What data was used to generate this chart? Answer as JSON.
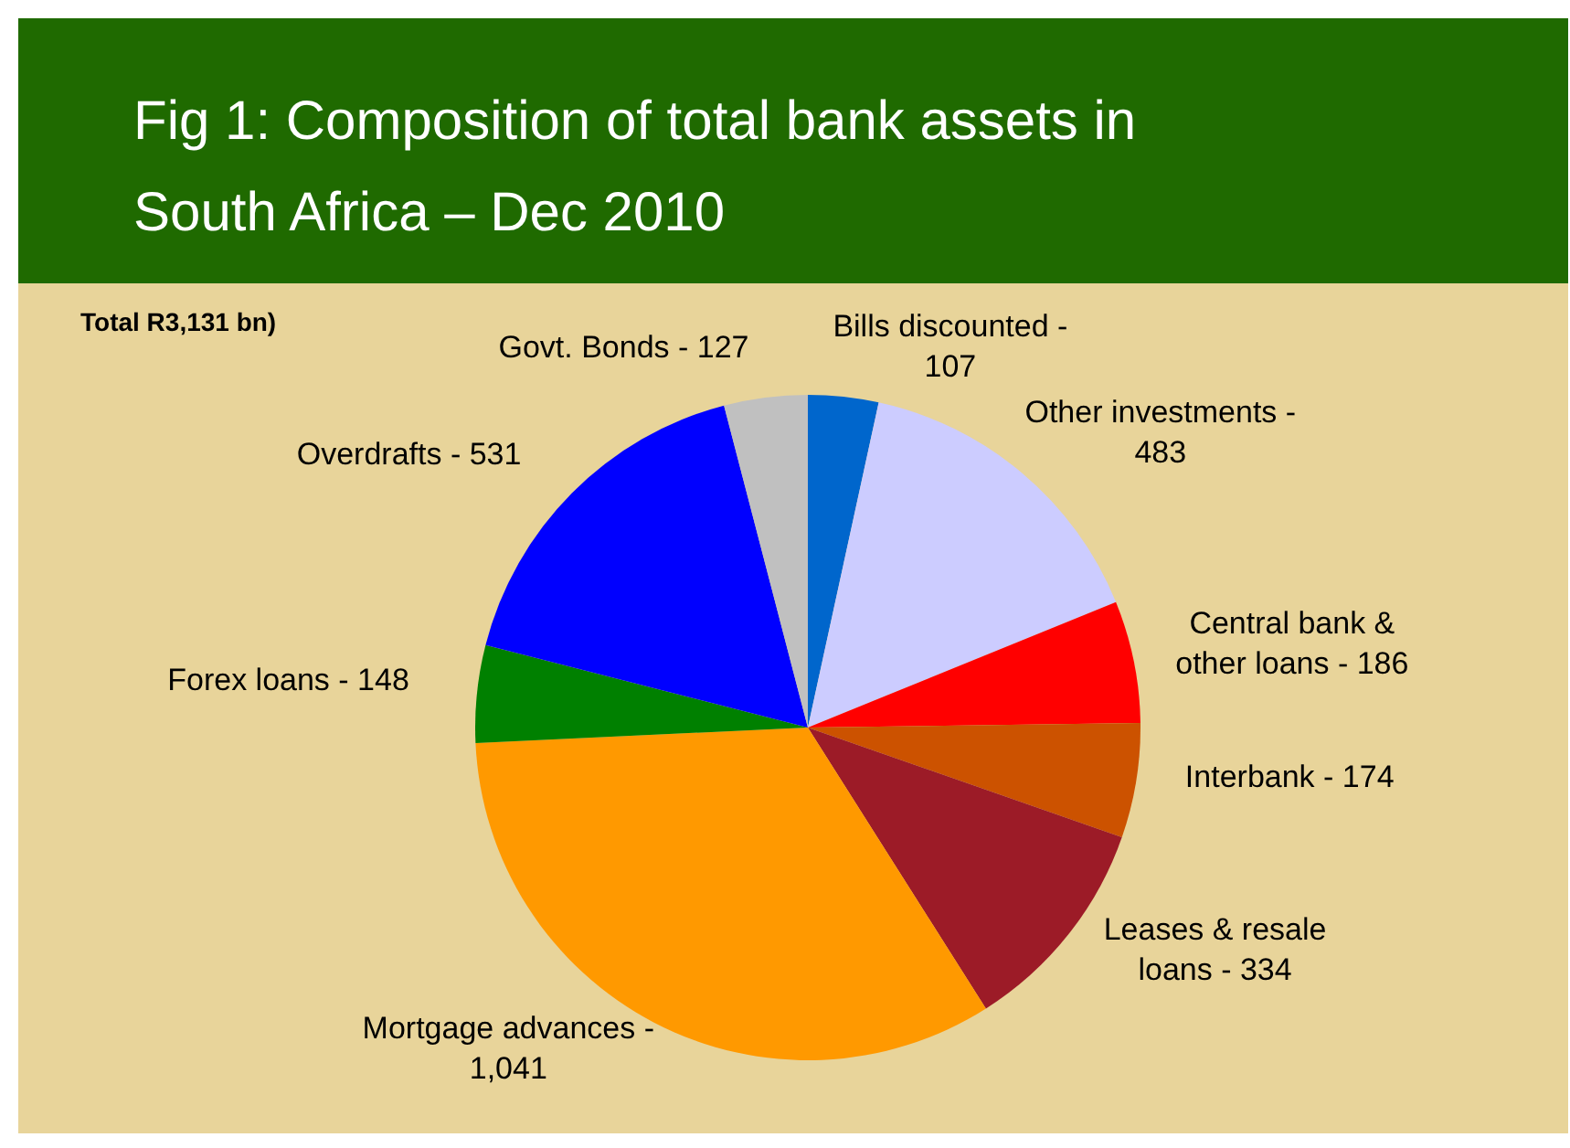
{
  "chart_data": {
    "type": "pie",
    "title": "Fig 1: Composition of total bank assets in South Africa – Dec 2010",
    "annotations": [
      "Total R3,131 bn)"
    ],
    "categories": [
      "Bills discounted -",
      "Other investments -",
      "Central bank & other loans -",
      "Interbank -",
      "Leases & resale loans -",
      "Mortgage advances -",
      "Forex loans -",
      "Overdrafts -",
      "Govt. Bonds -"
    ],
    "values": [
      107,
      483,
      186,
      174,
      334,
      1041,
      148,
      531,
      127
    ],
    "value_labels": [
      "107",
      "483",
      "186",
      "174",
      "334",
      "1,041",
      "148",
      "531",
      "127"
    ],
    "colors": [
      "#0066cc",
      "#ccccff",
      "#ff0000",
      "#cc5200",
      "#9c1b27",
      "#ff9900",
      "#008000",
      "#0000ff",
      "#c0c0c0"
    ]
  }
}
